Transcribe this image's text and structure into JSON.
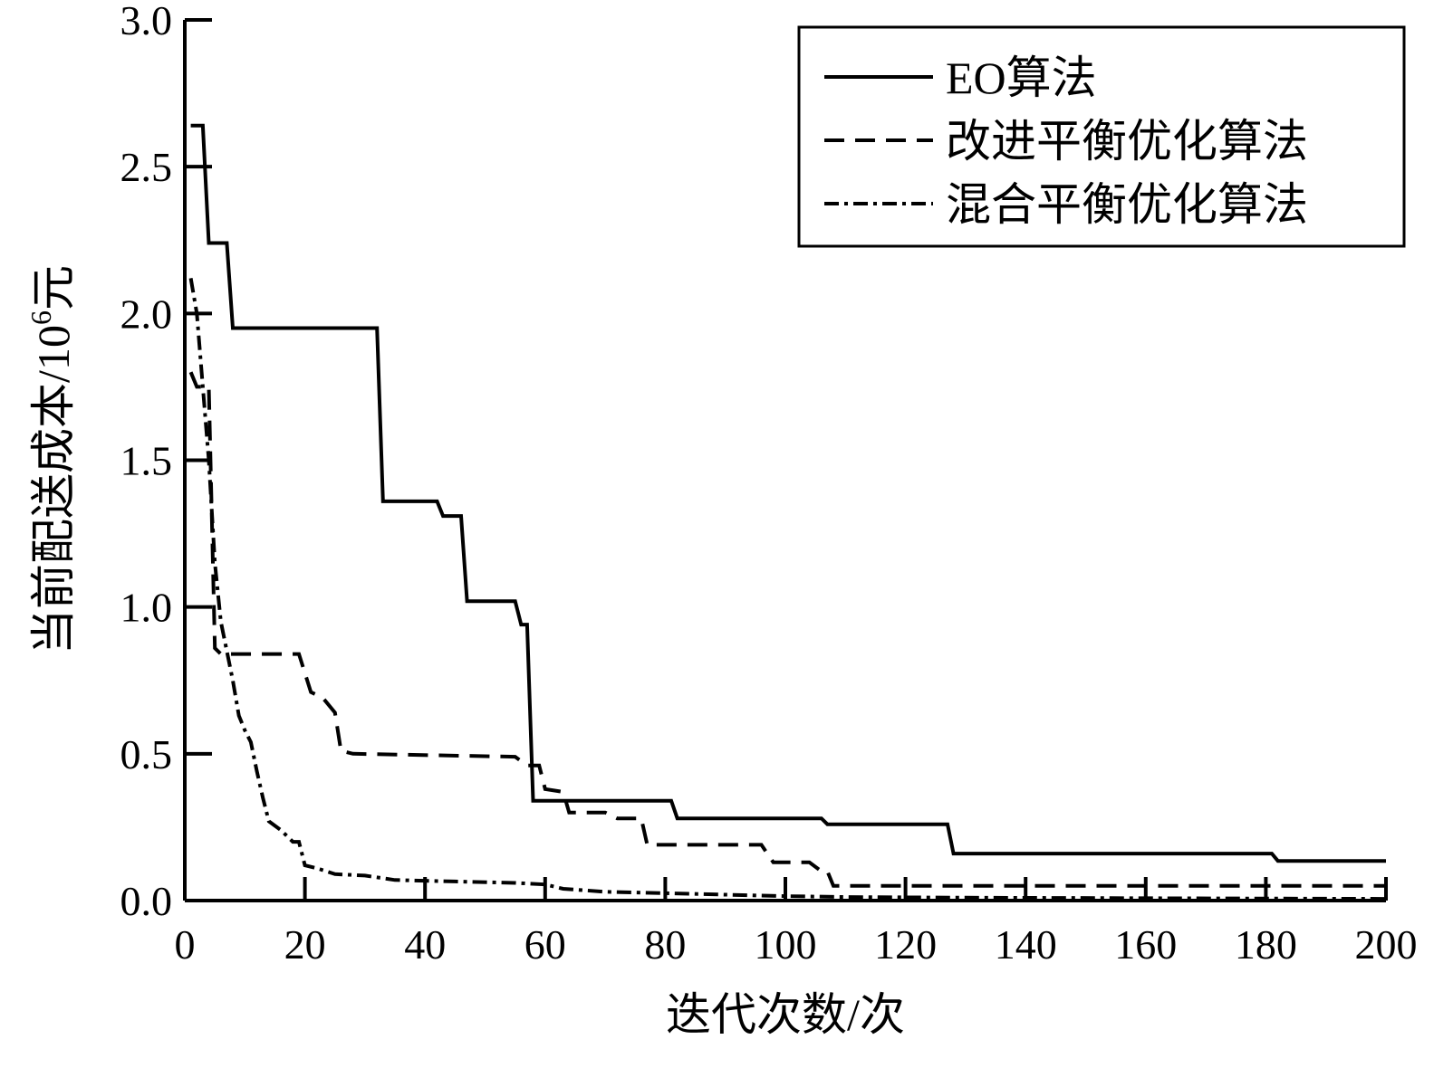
{
  "chart_data": {
    "type": "line",
    "xlabel": "迭代次数/次",
    "ylabel_prefix": "当前配送成本/10",
    "ylabel_exp": "6",
    "ylabel_suffix": "元",
    "xlim": [
      0,
      200
    ],
    "ylim": [
      0,
      3.0
    ],
    "x_ticks": [
      0,
      20,
      40,
      60,
      80,
      100,
      120,
      140,
      160,
      180,
      200
    ],
    "x_tick_labels": [
      "0",
      "20",
      "40",
      "60",
      "80",
      "100",
      "120",
      "140",
      "160",
      "180",
      "200"
    ],
    "y_ticks": [
      0,
      0.5,
      1.0,
      1.5,
      2.0,
      2.5,
      3.0
    ],
    "y_tick_labels": [
      "0.0",
      "0.5",
      "1.0",
      "1.5",
      "2.0",
      "2.5",
      "3.0"
    ],
    "grid": false,
    "legend_position": "top-right",
    "series": [
      {
        "name": "EO算法",
        "style": "solid",
        "points": [
          [
            1,
            2.64
          ],
          [
            3,
            2.64
          ],
          [
            4,
            2.24
          ],
          [
            7,
            2.24
          ],
          [
            8,
            1.95
          ],
          [
            32,
            1.95
          ],
          [
            33,
            1.36
          ],
          [
            42,
            1.36
          ],
          [
            43,
            1.31
          ],
          [
            46,
            1.31
          ],
          [
            47,
            1.02
          ],
          [
            55,
            1.02
          ],
          [
            56,
            0.94
          ],
          [
            57,
            0.94
          ],
          [
            58,
            0.34
          ],
          [
            81,
            0.34
          ],
          [
            82,
            0.28
          ],
          [
            106,
            0.28
          ],
          [
            107,
            0.26
          ],
          [
            127,
            0.26
          ],
          [
            128,
            0.16
          ],
          [
            181,
            0.16
          ],
          [
            182,
            0.135
          ],
          [
            200,
            0.135
          ]
        ]
      },
      {
        "name": "改进平衡优化算法",
        "style": "dashed",
        "points": [
          [
            1,
            1.8
          ],
          [
            2,
            1.75
          ],
          [
            4,
            1.75
          ],
          [
            5,
            0.86
          ],
          [
            6,
            0.84
          ],
          [
            19,
            0.84
          ],
          [
            21,
            0.71
          ],
          [
            23,
            0.69
          ],
          [
            25,
            0.64
          ],
          [
            26,
            0.51
          ],
          [
            28,
            0.5
          ],
          [
            55,
            0.49
          ],
          [
            57,
            0.46
          ],
          [
            59,
            0.46
          ],
          [
            60,
            0.38
          ],
          [
            63,
            0.37
          ],
          [
            64,
            0.3
          ],
          [
            70,
            0.3
          ],
          [
            72,
            0.28
          ],
          [
            76,
            0.28
          ],
          [
            77,
            0.19
          ],
          [
            96,
            0.19
          ],
          [
            98,
            0.13
          ],
          [
            104,
            0.13
          ],
          [
            106,
            0.1
          ],
          [
            107,
            0.1
          ],
          [
            108,
            0.05
          ],
          [
            200,
            0.05
          ]
        ]
      },
      {
        "name": "混合平衡优化算法",
        "style": "dashdot",
        "points": [
          [
            1,
            2.12
          ],
          [
            2,
            2.0
          ],
          [
            3,
            1.75
          ],
          [
            4,
            1.5
          ],
          [
            5,
            1.15
          ],
          [
            6,
            0.95
          ],
          [
            7,
            0.85
          ],
          [
            8,
            0.75
          ],
          [
            9,
            0.63
          ],
          [
            10,
            0.58
          ],
          [
            11,
            0.54
          ],
          [
            12,
            0.44
          ],
          [
            13,
            0.35
          ],
          [
            14,
            0.27
          ],
          [
            16,
            0.24
          ],
          [
            18,
            0.2
          ],
          [
            19,
            0.2
          ],
          [
            20,
            0.12
          ],
          [
            22,
            0.11
          ],
          [
            25,
            0.09
          ],
          [
            30,
            0.085
          ],
          [
            35,
            0.07
          ],
          [
            45,
            0.065
          ],
          [
            55,
            0.06
          ],
          [
            60,
            0.055
          ],
          [
            63,
            0.04
          ],
          [
            70,
            0.03
          ],
          [
            80,
            0.025
          ],
          [
            90,
            0.02
          ],
          [
            100,
            0.015
          ],
          [
            110,
            0.012
          ],
          [
            130,
            0.01
          ],
          [
            160,
            0.008
          ],
          [
            200,
            0.006
          ]
        ]
      }
    ]
  }
}
